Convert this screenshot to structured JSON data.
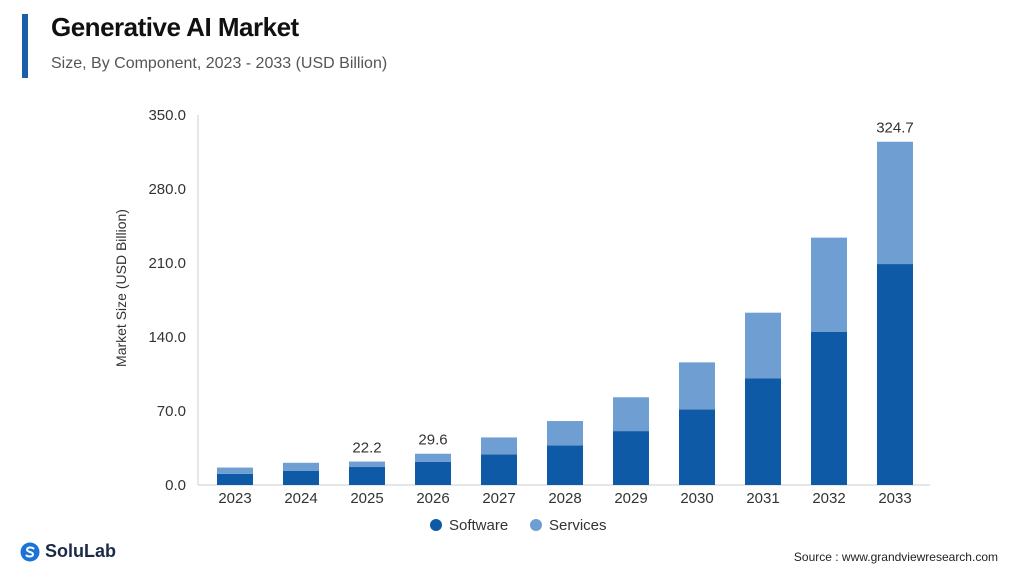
{
  "header": {
    "title": "Generative AI Market",
    "subtitle": "Size, By Component, 2023 - 2033 (USD Billion)"
  },
  "colors": {
    "accent": "#1a5fa8",
    "software": "#0e5aa7",
    "services": "#6f9fd2",
    "axis_text": "#333333"
  },
  "chart_data": {
    "type": "bar",
    "stacked": true,
    "categories": [
      "2023",
      "2024",
      "2025",
      "2026",
      "2027",
      "2028",
      "2029",
      "2030",
      "2031",
      "2032",
      "2033"
    ],
    "series": [
      {
        "name": "Software",
        "values": [
          10.5,
          13.5,
          17.0,
          22.0,
          29.0,
          37.5,
          51.0,
          71.5,
          101.0,
          145.0,
          209.0
        ]
      },
      {
        "name": "Services",
        "values": [
          6.0,
          7.5,
          5.2,
          7.6,
          16.0,
          23.0,
          32.0,
          44.5,
          62.0,
          89.0,
          115.7
        ]
      }
    ],
    "total_labels": [
      "",
      "",
      "22.2",
      "29.6",
      "",
      "",
      "",
      "",
      "",
      "",
      "324.7"
    ],
    "ylabel": "Market Size (USD Billion)",
    "xlabel": "",
    "ylim": [
      0,
      350
    ],
    "yticks": [
      "0.0",
      "70.0",
      "140.0",
      "210.0",
      "280.0",
      "350.0"
    ],
    "grid": false,
    "legend_position": "bottom-center"
  },
  "footer": {
    "brand": "SoluLab",
    "source": "Source :  www.grandviewresearch.com"
  },
  "icons": [
    "solulab-logo-icon"
  ]
}
